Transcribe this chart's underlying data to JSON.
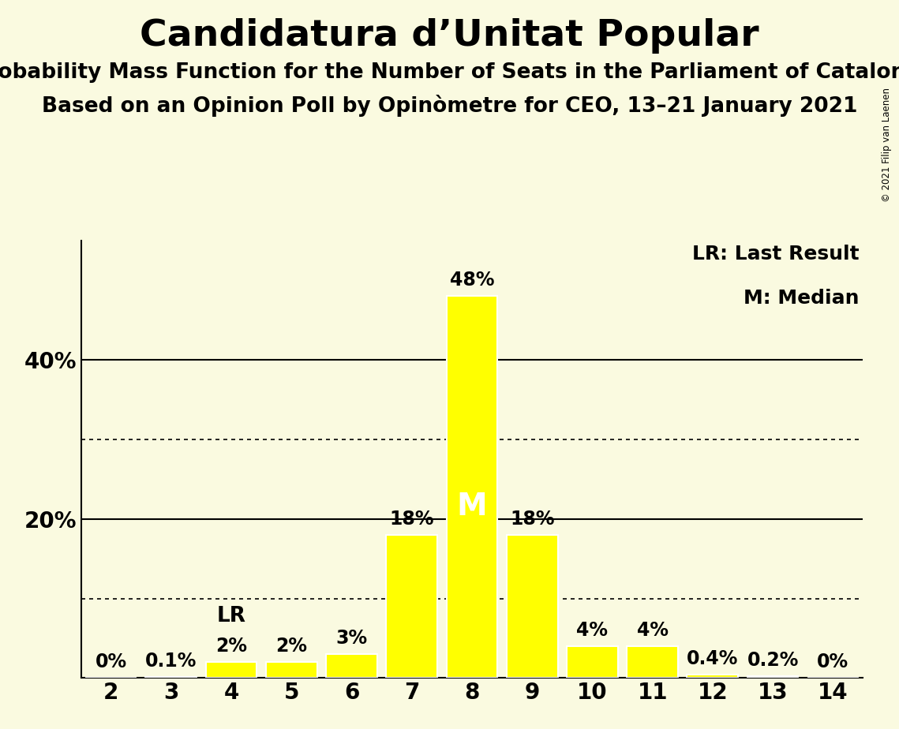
{
  "title": "Candidatura d’Unitat Popular",
  "subtitle1": "Probability Mass Function for the Number of Seats in the Parliament of Catalonia",
  "subtitle2": "Based on an Opinion Poll by Opinòmetre for CEO, 13–21 January 2021",
  "copyright": "© 2021 Filip van Laenen",
  "categories": [
    2,
    3,
    4,
    5,
    6,
    7,
    8,
    9,
    10,
    11,
    12,
    13,
    14
  ],
  "values": [
    0.0,
    0.1,
    2.0,
    2.0,
    3.0,
    18.0,
    48.0,
    18.0,
    4.0,
    4.0,
    0.4,
    0.2,
    0.0
  ],
  "labels": [
    "0%",
    "0.1%",
    "2%",
    "2%",
    "3%",
    "18%",
    "48%",
    "18%",
    "4%",
    "4%",
    "0.4%",
    "0.2%",
    "0%"
  ],
  "bar_color": "#FFFF00",
  "bar_edge_color": "#FFFFFF",
  "background_color": "#FAFAE0",
  "yticks": [
    0,
    20,
    40
  ],
  "ytick_labels": [
    "",
    "20%",
    "40%"
  ],
  "ylim": [
    0,
    55
  ],
  "solid_gridlines": [
    20,
    40
  ],
  "dotted_gridlines": [
    10,
    30
  ],
  "lr_seat": 4,
  "median_seat": 8,
  "legend_lr": "LR: Last Result",
  "legend_m": "M: Median",
  "lr_label": "LR",
  "m_label": "M",
  "title_fontsize": 34,
  "subtitle_fontsize": 19,
  "label_fontsize": 17,
  "tick_fontsize": 20,
  "annotation_fontsize": 17,
  "lr_fontsize": 19,
  "m_fontsize": 28
}
